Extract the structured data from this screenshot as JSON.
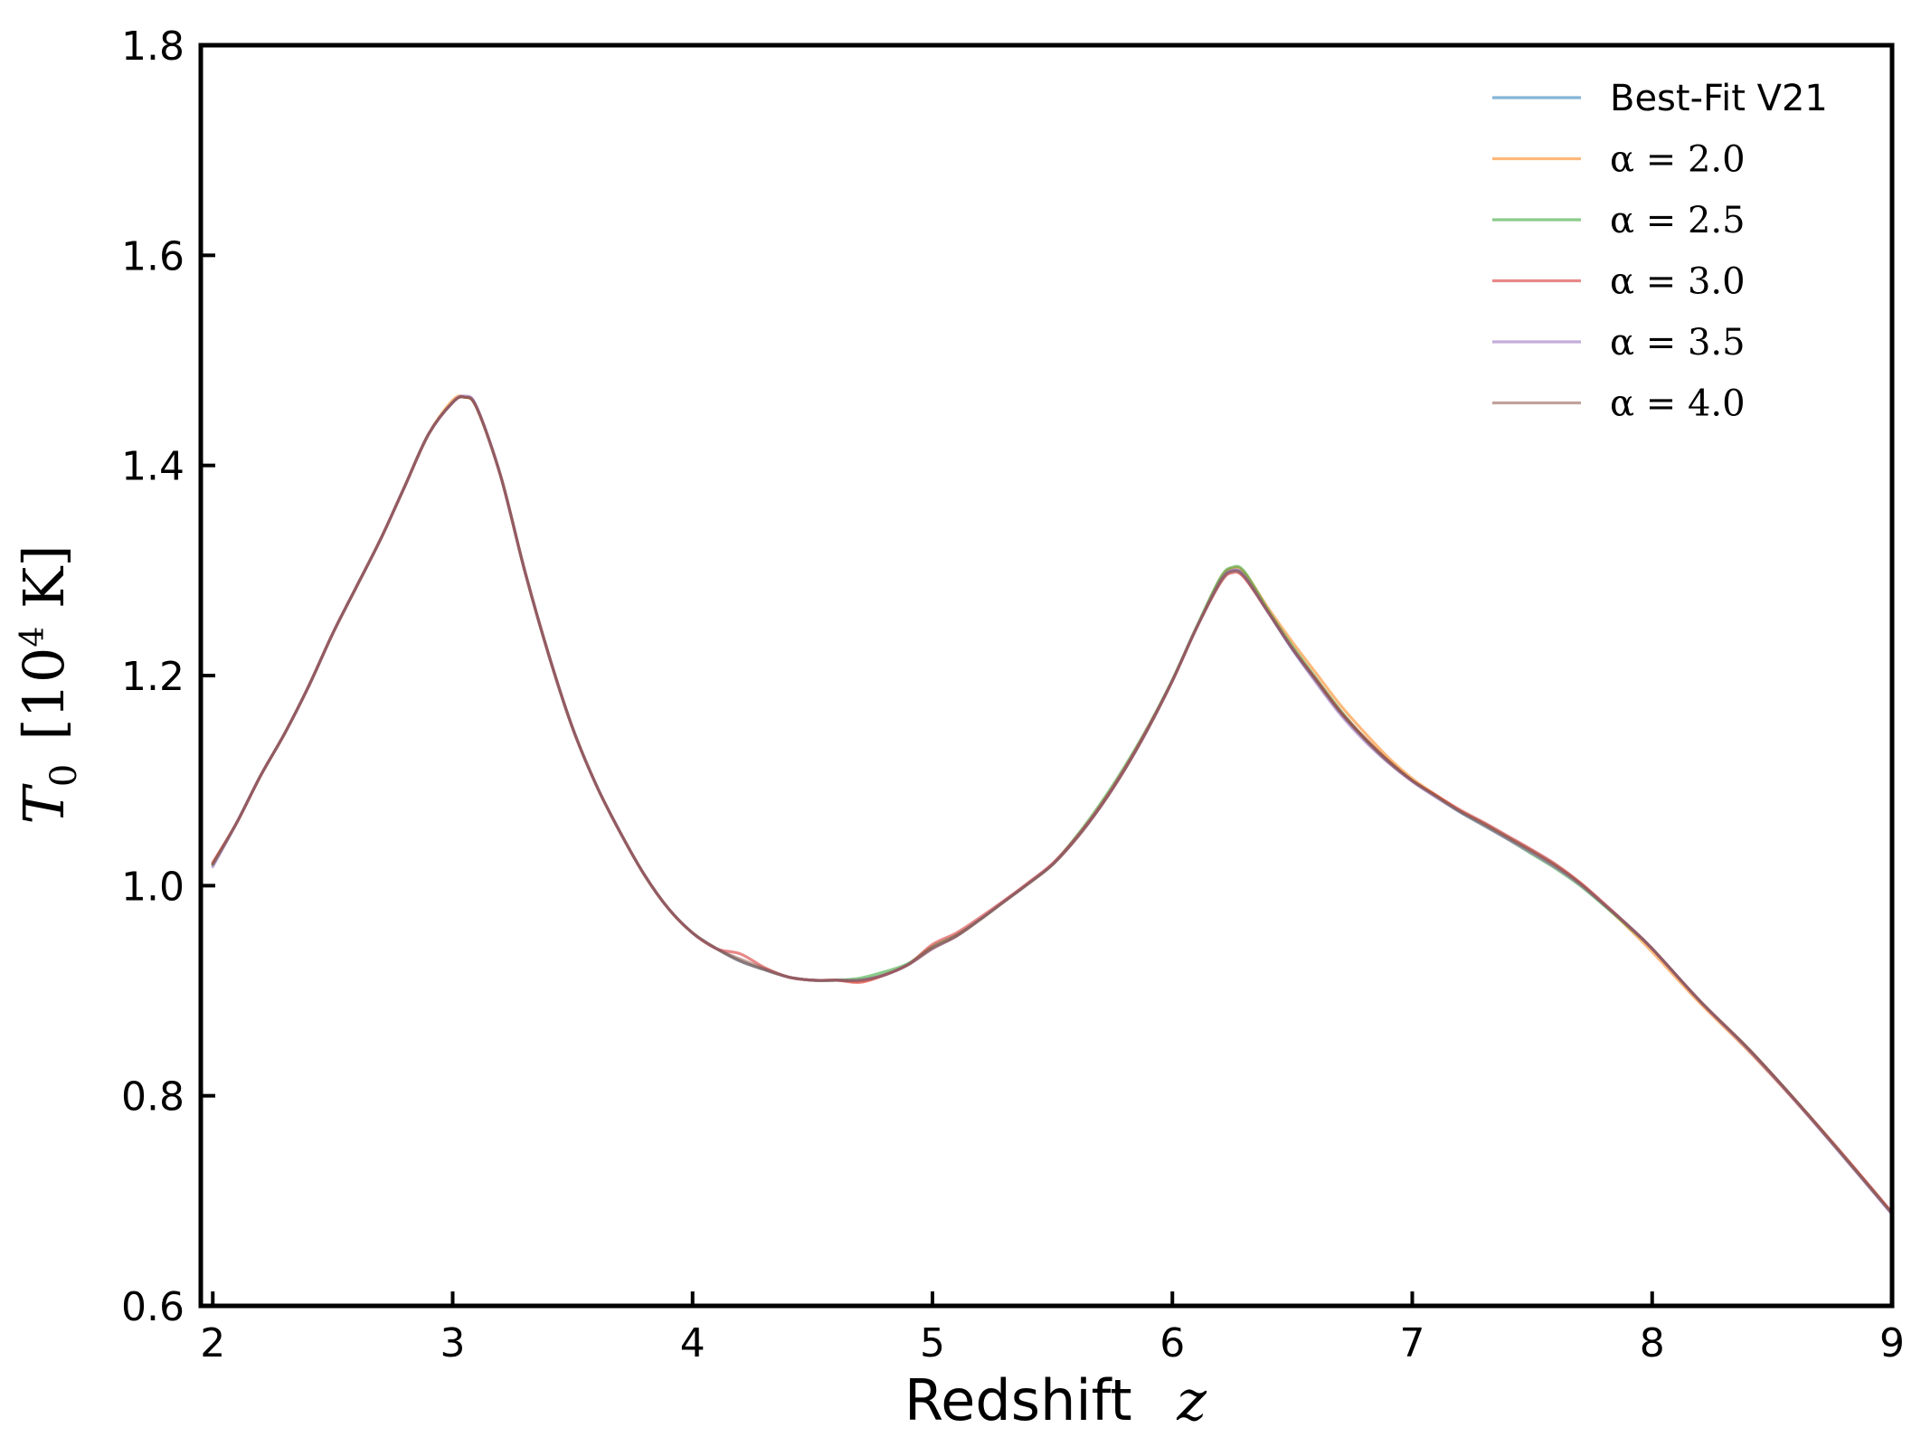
{
  "chart_data": {
    "type": "line",
    "xlabel": {
      "prefix": "Redshift",
      "symbol": "z"
    },
    "ylabel": {
      "symbol": "T",
      "subscript": "0",
      "unit_prefix": "[10",
      "unit_exp": "4",
      "unit_suffix": " K]"
    },
    "xlim": [
      1.95,
      9.0
    ],
    "ylim": [
      0.6,
      1.8
    ],
    "xticks": [
      2,
      3,
      4,
      5,
      6,
      7,
      8,
      9
    ],
    "yticks": [
      0.6,
      0.8,
      1.0,
      1.2,
      1.4,
      1.6,
      1.8
    ],
    "xtick_labels": [
      "2",
      "3",
      "4",
      "5",
      "6",
      "7",
      "8",
      "9"
    ],
    "ytick_labels": [
      "0.6",
      "0.8",
      "1.0",
      "1.2",
      "1.4",
      "1.6",
      "1.8"
    ],
    "grid": false,
    "legend_position": "top-right",
    "x": [
      2.0,
      2.1,
      2.2,
      2.3,
      2.4,
      2.5,
      2.6,
      2.7,
      2.8,
      2.9,
      3.0,
      3.05,
      3.1,
      3.2,
      3.3,
      3.4,
      3.5,
      3.6,
      3.7,
      3.8,
      3.9,
      4.0,
      4.1,
      4.2,
      4.3,
      4.4,
      4.5,
      4.6,
      4.7,
      4.8,
      4.9,
      5.0,
      5.1,
      5.2,
      5.3,
      5.4,
      5.5,
      5.6,
      5.7,
      5.8,
      5.9,
      6.0,
      6.1,
      6.2,
      6.25,
      6.3,
      6.4,
      6.5,
      6.6,
      6.7,
      6.8,
      6.9,
      7.0,
      7.1,
      7.2,
      7.3,
      7.4,
      7.5,
      7.6,
      7.7,
      7.8,
      7.9,
      8.0,
      8.2,
      8.4,
      8.6,
      8.8,
      9.0
    ],
    "series": [
      {
        "name": "Best-Fit V21",
        "label_kind": "text",
        "color": "#1f77b4",
        "values": [
          1.02,
          1.06,
          1.105,
          1.145,
          1.19,
          1.24,
          1.285,
          1.33,
          1.38,
          1.43,
          1.46,
          1.465,
          1.455,
          1.39,
          1.3,
          1.22,
          1.15,
          1.095,
          1.05,
          1.01,
          0.978,
          0.955,
          0.94,
          0.928,
          0.92,
          0.913,
          0.91,
          0.91,
          0.91,
          0.915,
          0.925,
          0.94,
          0.952,
          0.968,
          0.985,
          1.002,
          1.02,
          1.045,
          1.075,
          1.11,
          1.15,
          1.195,
          1.245,
          1.29,
          1.3,
          1.295,
          1.26,
          1.225,
          1.195,
          1.165,
          1.14,
          1.118,
          1.1,
          1.085,
          1.07,
          1.058,
          1.045,
          1.032,
          1.018,
          1.002,
          0.982,
          0.962,
          0.94,
          0.89,
          0.845,
          0.795,
          0.742,
          0.688
        ]
      },
      {
        "name": "α = 2.0",
        "label_kind": "math",
        "color": "#ff7f0e",
        "values": [
          1.02,
          1.06,
          1.105,
          1.145,
          1.19,
          1.24,
          1.285,
          1.33,
          1.38,
          1.43,
          1.462,
          1.465,
          1.455,
          1.39,
          1.3,
          1.22,
          1.15,
          1.095,
          1.05,
          1.01,
          0.978,
          0.955,
          0.94,
          0.928,
          0.92,
          0.913,
          0.91,
          0.91,
          0.909,
          0.915,
          0.925,
          0.94,
          0.952,
          0.968,
          0.985,
          1.002,
          1.02,
          1.045,
          1.075,
          1.11,
          1.15,
          1.195,
          1.245,
          1.292,
          1.302,
          1.298,
          1.264,
          1.232,
          1.202,
          1.172,
          1.146,
          1.122,
          1.102,
          1.086,
          1.071,
          1.058,
          1.045,
          1.032,
          1.018,
          1.002,
          0.982,
          0.96,
          0.937,
          0.888,
          0.843,
          0.794,
          0.742,
          0.688
        ]
      },
      {
        "name": "α = 2.5",
        "label_kind": "math",
        "color": "#2ca02c",
        "values": [
          1.02,
          1.06,
          1.105,
          1.145,
          1.19,
          1.24,
          1.285,
          1.33,
          1.38,
          1.43,
          1.46,
          1.465,
          1.455,
          1.39,
          1.3,
          1.22,
          1.15,
          1.095,
          1.05,
          1.01,
          0.978,
          0.955,
          0.94,
          0.928,
          0.92,
          0.913,
          0.91,
          0.91,
          0.912,
          0.918,
          0.926,
          0.942,
          0.953,
          0.968,
          0.985,
          1.002,
          1.02,
          1.047,
          1.078,
          1.113,
          1.152,
          1.196,
          1.246,
          1.293,
          1.303,
          1.299,
          1.262,
          1.228,
          1.197,
          1.167,
          1.141,
          1.119,
          1.1,
          1.085,
          1.07,
          1.057,
          1.044,
          1.03,
          1.016,
          1.0,
          0.981,
          0.961,
          0.94,
          0.89,
          0.845,
          0.795,
          0.742,
          0.688
        ]
      },
      {
        "name": "α = 3.0",
        "label_kind": "math",
        "color": "#d62728",
        "values": [
          1.022,
          1.06,
          1.105,
          1.145,
          1.19,
          1.24,
          1.285,
          1.33,
          1.38,
          1.43,
          1.46,
          1.465,
          1.455,
          1.39,
          1.3,
          1.22,
          1.15,
          1.095,
          1.05,
          1.01,
          0.978,
          0.955,
          0.94,
          0.935,
          0.922,
          0.913,
          0.91,
          0.91,
          0.908,
          0.915,
          0.925,
          0.944,
          0.955,
          0.97,
          0.986,
          1.003,
          1.021,
          1.046,
          1.076,
          1.111,
          1.151,
          1.195,
          1.245,
          1.288,
          1.298,
          1.293,
          1.26,
          1.226,
          1.196,
          1.166,
          1.141,
          1.119,
          1.1,
          1.086,
          1.072,
          1.06,
          1.047,
          1.034,
          1.02,
          1.003,
          0.983,
          0.962,
          0.94,
          0.89,
          0.845,
          0.795,
          0.743,
          0.689
        ]
      },
      {
        "name": "α = 3.5",
        "label_kind": "math",
        "color": "#9467bd",
        "values": [
          1.018,
          1.06,
          1.105,
          1.145,
          1.19,
          1.24,
          1.285,
          1.33,
          1.38,
          1.43,
          1.46,
          1.466,
          1.456,
          1.39,
          1.3,
          1.22,
          1.15,
          1.095,
          1.05,
          1.01,
          0.978,
          0.955,
          0.94,
          0.928,
          0.92,
          0.913,
          0.91,
          0.91,
          0.91,
          0.915,
          0.925,
          0.94,
          0.952,
          0.968,
          0.985,
          1.002,
          1.02,
          1.045,
          1.075,
          1.11,
          1.15,
          1.195,
          1.245,
          1.29,
          1.3,
          1.295,
          1.26,
          1.225,
          1.193,
          1.163,
          1.138,
          1.117,
          1.099,
          1.084,
          1.07,
          1.057,
          1.044,
          1.031,
          1.017,
          1.001,
          0.982,
          0.962,
          0.94,
          0.89,
          0.844,
          0.794,
          0.741,
          0.687
        ]
      },
      {
        "name": "α = 4.0",
        "label_kind": "math",
        "color": "#8c564b",
        "values": [
          1.021,
          1.06,
          1.105,
          1.145,
          1.19,
          1.24,
          1.285,
          1.33,
          1.38,
          1.43,
          1.46,
          1.465,
          1.455,
          1.39,
          1.3,
          1.22,
          1.15,
          1.095,
          1.05,
          1.01,
          0.978,
          0.955,
          0.94,
          0.93,
          0.921,
          0.913,
          0.91,
          0.91,
          0.91,
          0.915,
          0.925,
          0.941,
          0.952,
          0.968,
          0.985,
          1.002,
          1.02,
          1.045,
          1.075,
          1.11,
          1.15,
          1.195,
          1.245,
          1.289,
          1.299,
          1.294,
          1.26,
          1.226,
          1.195,
          1.165,
          1.14,
          1.118,
          1.1,
          1.085,
          1.071,
          1.059,
          1.046,
          1.033,
          1.019,
          1.002,
          0.982,
          0.962,
          0.94,
          0.89,
          0.845,
          0.795,
          0.742,
          0.688
        ]
      }
    ]
  }
}
